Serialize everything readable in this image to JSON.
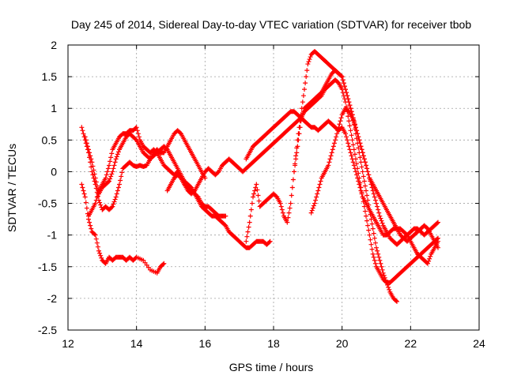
{
  "chart_data": {
    "type": "scatter",
    "title": "Day 245 of 2014, Sidereal Day-to-day VTEC variation (SDTVAR) for receiver tbob",
    "xlabel": "GPS time / hours",
    "ylabel": "SDTVAR / TECUs",
    "xlim": [
      12,
      24
    ],
    "ylim": [
      -2.5,
      2
    ],
    "xticks": [
      12,
      14,
      16,
      18,
      20,
      22,
      24
    ],
    "yticks": [
      -2.5,
      -2,
      -1.5,
      -1,
      -0.5,
      0,
      0.5,
      1,
      1.5,
      2
    ],
    "grid": true,
    "marker": "+",
    "color": "#ff0000",
    "series": [
      {
        "name": "s1",
        "x": [
          12.4,
          12.5,
          12.6,
          12.7,
          12.8,
          12.9,
          13.0,
          13.1,
          13.2,
          13.3,
          13.4,
          13.5,
          13.6,
          13.7,
          13.8,
          13.9,
          14.0,
          14.2,
          14.4,
          14.6,
          14.7,
          14.8
        ],
        "y": [
          -0.2,
          -0.4,
          -0.75,
          -0.95,
          -1.0,
          -1.25,
          -1.4,
          -1.45,
          -1.35,
          -1.4,
          -1.35,
          -1.35,
          -1.35,
          -1.4,
          -1.35,
          -1.4,
          -1.35,
          -1.4,
          -1.55,
          -1.6,
          -1.5,
          -1.45
        ]
      },
      {
        "name": "s2",
        "x": [
          12.4,
          12.5,
          12.6,
          12.7,
          12.8,
          12.9,
          13.0,
          13.1,
          13.2,
          13.3,
          13.4,
          13.5,
          13.6,
          13.7,
          13.8,
          13.9,
          14.0,
          14.1,
          14.2,
          14.3,
          14.4,
          14.5,
          14.6,
          14.7,
          14.8,
          14.9,
          15.0,
          15.1,
          15.2,
          15.3,
          15.4,
          15.5,
          15.6,
          15.7,
          15.8,
          15.9,
          16.0
        ],
        "y": [
          0.7,
          0.5,
          0.3,
          0.0,
          -0.2,
          -0.45,
          -0.6,
          -0.55,
          -0.6,
          -0.55,
          -0.4,
          -0.2,
          0.05,
          0.1,
          0.15,
          0.1,
          0.08,
          0.1,
          0.08,
          0.1,
          0.2,
          0.3,
          0.35,
          0.3,
          0.3,
          0.4,
          0.5,
          0.6,
          0.65,
          0.6,
          0.5,
          0.4,
          0.3,
          0.2,
          0.1,
          0.0,
          -0.1
        ]
      },
      {
        "name": "s3",
        "x": [
          12.6,
          12.7,
          12.8,
          12.9,
          13.0,
          13.1,
          13.2,
          13.3,
          13.4,
          13.5,
          13.6,
          13.7,
          13.8,
          13.9,
          14.0,
          14.1,
          14.2,
          14.3,
          14.4,
          14.5,
          14.6,
          14.7,
          14.8,
          14.9,
          15.0,
          15.1,
          15.2,
          15.3,
          15.4,
          15.5,
          15.6,
          15.7,
          15.8,
          15.9,
          16.0,
          16.1,
          16.2,
          16.3,
          16.4,
          16.5,
          16.6
        ],
        "y": [
          -0.7,
          -0.6,
          -0.5,
          -0.3,
          -0.2,
          -0.1,
          0.1,
          0.35,
          0.45,
          0.55,
          0.6,
          0.6,
          0.65,
          0.65,
          0.7,
          0.5,
          0.4,
          0.35,
          0.3,
          0.35,
          0.3,
          0.2,
          0.1,
          0.05,
          0.0,
          -0.05,
          0.0,
          -0.1,
          -0.2,
          -0.25,
          -0.3,
          -0.35,
          -0.4,
          -0.5,
          -0.55,
          -0.55,
          -0.6,
          -0.65,
          -0.7,
          -0.7,
          -0.7
        ]
      },
      {
        "name": "s4",
        "x": [
          12.5,
          12.6,
          12.7,
          12.8,
          12.9,
          13.0,
          13.1,
          13.2,
          13.3,
          13.4,
          13.5,
          13.6,
          13.7,
          13.8,
          13.9,
          14.0,
          14.1,
          14.2,
          14.3,
          14.4,
          14.5,
          14.6,
          14.7,
          14.8,
          14.9,
          15.0,
          15.1,
          15.2,
          15.3,
          15.4,
          15.5,
          15.6,
          15.7,
          15.8,
          15.9,
          16.0,
          16.1,
          16.2,
          16.3,
          16.4,
          16.5,
          16.6,
          16.7,
          16.8,
          16.9,
          17.0,
          17.1,
          17.2,
          17.3,
          17.4,
          17.5,
          17.6,
          17.7,
          17.8,
          17.9
        ],
        "y": [
          0.55,
          0.35,
          0.15,
          -0.1,
          -0.35,
          -0.25,
          -0.2,
          -0.15,
          0.0,
          0.2,
          0.35,
          0.45,
          0.55,
          0.6,
          0.55,
          0.5,
          0.4,
          0.3,
          0.25,
          0.2,
          0.25,
          0.3,
          0.35,
          0.4,
          0.35,
          0.25,
          0.15,
          0.05,
          -0.05,
          -0.15,
          -0.2,
          -0.25,
          -0.35,
          -0.45,
          -0.55,
          -0.6,
          -0.65,
          -0.7,
          -0.7,
          -0.75,
          -0.8,
          -0.85,
          -0.95,
          -1.0,
          -1.05,
          -1.1,
          -1.15,
          -1.2,
          -1.2,
          -1.15,
          -1.1,
          -1.1,
          -1.1,
          -1.15,
          -1.1
        ]
      },
      {
        "name": "s5",
        "x": [
          14.9,
          15.0,
          15.1,
          15.2,
          15.3,
          15.4,
          15.5,
          15.6,
          15.7,
          15.8,
          15.9,
          16.0,
          16.1,
          16.2,
          16.3,
          16.4,
          16.5,
          16.6,
          16.7,
          16.8,
          16.9,
          17.0,
          17.1,
          17.2,
          17.3,
          17.4,
          17.5,
          17.6,
          17.7,
          17.8,
          17.9,
          18.0,
          18.1,
          18.2,
          18.3,
          18.4,
          18.5,
          18.6,
          18.7,
          18.8,
          18.9,
          19.0,
          19.1,
          19.2,
          19.3,
          19.4,
          19.5,
          19.6,
          19.7,
          19.8,
          19.9,
          20.0,
          20.1,
          20.2,
          20.3,
          20.4,
          20.5,
          20.6,
          20.7,
          20.8,
          20.9,
          21.0,
          21.1,
          21.2,
          21.3,
          21.4,
          21.5,
          21.6,
          21.7,
          21.8,
          21.9,
          22.0,
          22.1,
          22.2,
          22.3,
          22.4,
          22.5,
          22.6,
          22.7,
          22.8
        ],
        "y": [
          -0.3,
          -0.2,
          -0.1,
          -0.05,
          -0.1,
          -0.2,
          -0.3,
          -0.35,
          -0.3,
          -0.2,
          -0.1,
          0.0,
          0.05,
          0.0,
          -0.05,
          0.0,
          0.1,
          0.15,
          0.2,
          0.15,
          0.1,
          0.05,
          0.0,
          0.05,
          0.1,
          0.15,
          0.2,
          0.25,
          0.3,
          0.35,
          0.4,
          0.45,
          0.5,
          0.55,
          0.6,
          0.65,
          0.7,
          0.75,
          0.8,
          0.85,
          0.95,
          1.0,
          1.05,
          1.1,
          1.15,
          1.2,
          1.3,
          1.35,
          1.4,
          1.45,
          1.4,
          1.3,
          1.1,
          0.8,
          0.5,
          0.2,
          -0.1,
          -0.4,
          -0.7,
          -1.0,
          -1.3,
          -1.5,
          -1.6,
          -1.7,
          -1.75,
          -1.75,
          -1.7,
          -1.65,
          -1.6,
          -1.55,
          -1.5,
          -1.45,
          -1.4,
          -1.35,
          -1.3,
          -1.25,
          -1.2,
          -1.15,
          -1.1,
          -1.05
        ]
      },
      {
        "name": "s6",
        "x": [
          17.2,
          17.3,
          17.4,
          17.5,
          17.6,
          17.7,
          17.8,
          17.9,
          18.0,
          18.1,
          18.2,
          18.3,
          18.4,
          18.5,
          18.6,
          18.7,
          18.8,
          18.9,
          19.0,
          19.1,
          19.2,
          19.3,
          19.4,
          19.5,
          19.6,
          19.7,
          19.8,
          19.9,
          20.0,
          20.1,
          20.2,
          20.3,
          20.4,
          20.5,
          20.6,
          20.7,
          20.8,
          20.9,
          21.0,
          21.1,
          21.2,
          21.3,
          21.4,
          21.5,
          21.6
        ],
        "y": [
          -1.1,
          -0.8,
          -0.4,
          -0.2,
          -0.55,
          -0.5,
          -0.45,
          -0.4,
          -0.35,
          -0.4,
          -0.5,
          -0.7,
          -0.8,
          -0.5,
          0.0,
          0.5,
          0.9,
          1.3,
          1.7,
          1.85,
          1.9,
          1.85,
          1.8,
          1.75,
          1.7,
          1.65,
          1.6,
          1.55,
          1.5,
          1.3,
          1.1,
          0.9,
          0.6,
          0.3,
          0.0,
          -0.3,
          -0.6,
          -0.9,
          -1.2,
          -1.4,
          -1.6,
          -1.75,
          -1.9,
          -2.0,
          -2.05
        ]
      },
      {
        "name": "s7",
        "x": [
          18.6,
          18.7,
          18.8,
          18.9,
          19.0,
          19.1,
          19.2,
          19.3,
          19.4,
          19.5,
          19.6,
          19.7,
          19.8,
          19.9,
          20.0,
          20.1,
          20.2,
          20.3,
          20.4,
          20.5,
          20.6,
          20.7,
          20.8,
          20.9,
          21.0,
          21.1,
          21.2,
          21.3,
          21.4,
          21.5,
          21.6,
          21.7,
          21.8,
          21.9,
          22.0,
          22.1,
          22.2,
          22.3,
          22.4,
          22.5,
          22.6,
          22.7,
          22.8
        ],
        "y": [
          0.0,
          0.4,
          0.8,
          1.0,
          1.05,
          1.1,
          1.15,
          1.2,
          1.25,
          1.35,
          1.45,
          1.55,
          1.6,
          1.55,
          1.5,
          1.3,
          1.1,
          0.9,
          0.7,
          0.5,
          0.3,
          0.1,
          -0.1,
          -0.3,
          -0.5,
          -0.7,
          -0.85,
          -0.95,
          -1.05,
          -1.1,
          -1.15,
          -1.1,
          -1.05,
          -1.0,
          -0.95,
          -0.9,
          -0.9,
          -0.95,
          -1.0,
          -0.95,
          -0.9,
          -0.85,
          -0.8
        ]
      },
      {
        "name": "s8",
        "x": [
          17.2,
          17.3,
          17.4,
          17.5,
          17.6,
          17.7,
          17.8,
          17.9,
          18.0,
          18.1,
          18.2,
          18.3,
          18.4,
          18.5,
          18.6,
          18.7,
          18.8,
          18.9,
          19.0,
          19.1,
          19.2,
          19.3,
          19.4,
          19.5,
          19.6,
          19.7,
          19.8,
          19.9,
          20.0,
          20.1,
          20.2,
          20.3,
          20.4,
          20.5,
          20.6,
          20.7,
          20.8,
          20.9,
          21.0,
          21.1,
          21.2,
          21.3,
          21.4,
          21.5,
          21.6,
          21.7,
          21.8,
          21.9,
          22.0,
          22.1,
          22.2,
          22.3,
          22.4,
          22.5,
          22.6,
          22.7,
          22.8
        ],
        "y": [
          0.2,
          0.3,
          0.4,
          0.45,
          0.5,
          0.55,
          0.6,
          0.65,
          0.7,
          0.75,
          0.8,
          0.85,
          0.9,
          0.95,
          0.95,
          0.9,
          0.85,
          0.8,
          0.75,
          0.7,
          0.7,
          0.65,
          0.7,
          0.75,
          0.8,
          0.75,
          0.7,
          0.65,
          0.7,
          0.6,
          0.4,
          0.2,
          0.0,
          -0.2,
          -0.4,
          -0.5,
          -0.6,
          -0.7,
          -0.8,
          -0.9,
          -1.0,
          -1.0,
          -0.95,
          -0.9,
          -0.9,
          -0.9,
          -0.95,
          -1.0,
          -1.1,
          -1.2,
          -1.3,
          -1.35,
          -1.4,
          -1.45,
          -1.3,
          -1.2,
          -1.1
        ]
      },
      {
        "name": "s9",
        "x": [
          19.1,
          19.2,
          19.3,
          19.4,
          19.5,
          19.6,
          19.7,
          19.8,
          19.9,
          20.0,
          20.1,
          20.2,
          20.3,
          20.4,
          20.5,
          20.6,
          20.7,
          20.8,
          20.9,
          21.0,
          21.1,
          21.2,
          21.3,
          21.4,
          21.5,
          21.6,
          21.7,
          21.8,
          21.9,
          22.0,
          22.1,
          22.2,
          22.3,
          22.4,
          22.5,
          22.6,
          22.7,
          22.8
        ],
        "y": [
          -0.65,
          -0.5,
          -0.3,
          -0.1,
          0.0,
          0.1,
          0.3,
          0.5,
          0.7,
          0.9,
          1.0,
          0.95,
          0.85,
          0.7,
          0.5,
          0.3,
          0.1,
          -0.1,
          -0.2,
          -0.3,
          -0.4,
          -0.5,
          -0.6,
          -0.7,
          -0.8,
          -0.9,
          -1.0,
          -1.05,
          -1.1,
          -1.05,
          -1.0,
          -0.95,
          -0.9,
          -0.85,
          -0.9,
          -1.0,
          -1.1,
          -1.2
        ]
      }
    ]
  }
}
